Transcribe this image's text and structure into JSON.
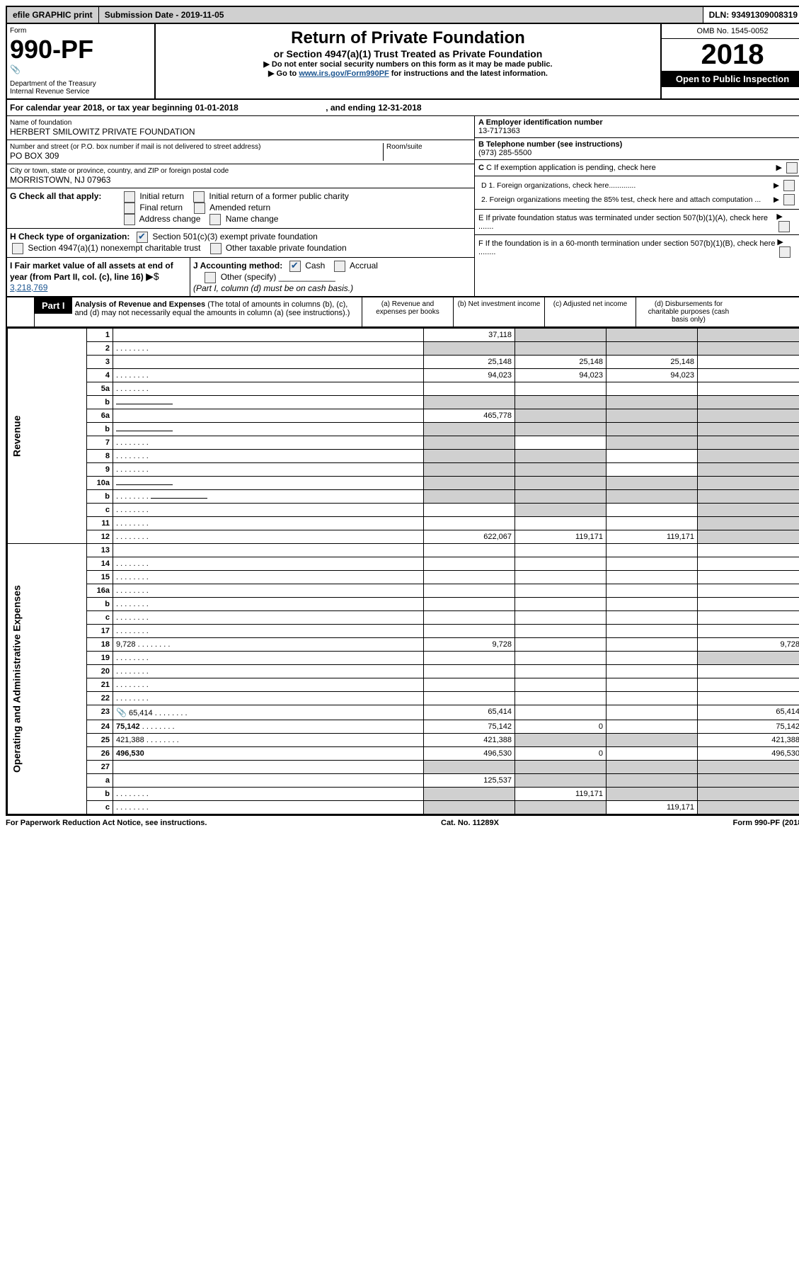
{
  "top": {
    "efile": "efile GRAPHIC print",
    "sub_date": "Submission Date - 2019-11-05",
    "dln": "DLN: 93491309008319"
  },
  "header": {
    "form_label": "Form",
    "form_no": "990-PF",
    "dept": "Department of the Treasury",
    "irs": "Internal Revenue Service",
    "title": "Return of Private Foundation",
    "subtitle": "or Section 4947(a)(1) Trust Treated as Private Foundation",
    "instr1": "▶ Do not enter social security numbers on this form as it may be made public.",
    "instr2_pre": "▶ Go to ",
    "instr2_link": "www.irs.gov/Form990PF",
    "instr2_post": " for instructions and the latest information.",
    "omb": "OMB No. 1545-0052",
    "year": "2018",
    "inspection": "Open to Public Inspection"
  },
  "cal": {
    "text_pre": "For calendar year 2018, or tax year beginning ",
    "begin": "01-01-2018",
    "mid": ", and ending ",
    "end": "12-31-2018"
  },
  "info": {
    "name_label": "Name of foundation",
    "name": "HERBERT SMILOWITZ PRIVATE FOUNDATION",
    "addr_label": "Number and street (or P.O. box number if mail is not delivered to street address)",
    "room_label": "Room/suite",
    "addr": "PO BOX 309",
    "city_label": "City or town, state or province, country, and ZIP or foreign postal code",
    "city": "MORRISTOWN, NJ  07963",
    "a_label": "A Employer identification number",
    "a_val": "13-7171363",
    "b_label": "B Telephone number (see instructions)",
    "b_val": "(973) 285-5500",
    "c_label": "C If exemption application is pending, check here",
    "d1": "D 1. Foreign organizations, check here.............",
    "d2": "2. Foreign organizations meeting the 85% test, check here and attach computation ...",
    "e": "E If private foundation status was terminated under section 507(b)(1)(A), check here .......",
    "f": "F If the foundation is in a 60-month termination under section 507(b)(1)(B), check here ........"
  },
  "g": {
    "label": "G Check all that apply:",
    "opts": [
      "Initial return",
      "Initial return of a former public charity",
      "Final return",
      "Amended return",
      "Address change",
      "Name change"
    ]
  },
  "h": {
    "label": "H Check type of organization:",
    "o1": "Section 501(c)(3) exempt private foundation",
    "o2": "Section 4947(a)(1) nonexempt charitable trust",
    "o3": "Other taxable private foundation"
  },
  "i": {
    "label": "I Fair market value of all assets at end of year (from Part II, col. (c), line 16)",
    "arrow": "▶$",
    "val": "3,218,769"
  },
  "j": {
    "label": "J Accounting method:",
    "o1": "Cash",
    "o2": "Accrual",
    "o3": "Other (specify)",
    "note": "(Part I, column (d) must be on cash basis.)"
  },
  "part1": {
    "label": "Part I",
    "title": "Analysis of Revenue and Expenses",
    "title_note": "(The total of amounts in columns (b), (c), and (d) may not necessarily equal the amounts in column (a) (see instructions).)",
    "col_a": "(a) Revenue and expenses per books",
    "col_b": "(b) Net investment income",
    "col_c": "(c) Adjusted net income",
    "col_d": "(d) Disbursements for charitable purposes (cash basis only)"
  },
  "sections": {
    "revenue": "Revenue",
    "expenses": "Operating and Administrative Expenses"
  },
  "rows": [
    {
      "n": "1",
      "d": "",
      "a": "37,118",
      "b": "",
      "c": "",
      "shade_bcd": true
    },
    {
      "n": "2",
      "d": "",
      "a": "",
      "b": "",
      "c": "",
      "shade_all": true,
      "dots": true,
      "bold_parts": true
    },
    {
      "n": "3",
      "d": "",
      "a": "25,148",
      "b": "25,148",
      "c": "25,148"
    },
    {
      "n": "4",
      "d": "",
      "a": "94,023",
      "b": "94,023",
      "c": "94,023",
      "dots": true
    },
    {
      "n": "5a",
      "d": "",
      "a": "",
      "b": "",
      "c": "",
      "dots": true
    },
    {
      "n": "b",
      "d": "",
      "a": "",
      "b": "",
      "c": "",
      "inline": true,
      "shade_all": true
    },
    {
      "n": "6a",
      "d": "",
      "a": "465,778",
      "b": "",
      "c": "",
      "shade_bcd": true
    },
    {
      "n": "b",
      "d": "",
      "a": "",
      "b": "",
      "c": "",
      "inline": true,
      "shade_all": true
    },
    {
      "n": "7",
      "d": "",
      "a": "",
      "b": "",
      "c": "",
      "dots": true,
      "shade_a": true,
      "shade_cd": true
    },
    {
      "n": "8",
      "d": "",
      "a": "",
      "b": "",
      "c": "",
      "dots": true,
      "shade_ab": true,
      "shade_d": true
    },
    {
      "n": "9",
      "d": "",
      "a": "",
      "b": "",
      "c": "",
      "dots": true,
      "shade_ab": true,
      "shade_d": true
    },
    {
      "n": "10a",
      "d": "",
      "a": "",
      "b": "",
      "c": "",
      "inline": true,
      "shade_all": true
    },
    {
      "n": "b",
      "d": "",
      "a": "",
      "b": "",
      "c": "",
      "dots": true,
      "inline": true,
      "shade_all": true
    },
    {
      "n": "c",
      "d": "",
      "a": "",
      "b": "",
      "c": "",
      "dots": true,
      "shade_b": true,
      "shade_d": true
    },
    {
      "n": "11",
      "d": "",
      "a": "",
      "b": "",
      "c": "",
      "dots": true,
      "shade_d": true
    },
    {
      "n": "12",
      "d": "",
      "a": "622,067",
      "b": "119,171",
      "c": "119,171",
      "dots": true,
      "bold": true,
      "shade_d": true
    },
    {
      "n": "13",
      "d": "",
      "a": "",
      "b": "",
      "c": "",
      "section": "exp"
    },
    {
      "n": "14",
      "d": "",
      "a": "",
      "b": "",
      "c": "",
      "dots": true
    },
    {
      "n": "15",
      "d": "",
      "a": "",
      "b": "",
      "c": "",
      "dots": true
    },
    {
      "n": "16a",
      "d": "",
      "a": "",
      "b": "",
      "c": "",
      "dots": true
    },
    {
      "n": "b",
      "d": "",
      "a": "",
      "b": "",
      "c": "",
      "dots": true
    },
    {
      "n": "c",
      "d": "",
      "a": "",
      "b": "",
      "c": "",
      "dots": true
    },
    {
      "n": "17",
      "d": "",
      "a": "",
      "b": "",
      "c": "",
      "dots": true
    },
    {
      "n": "18",
      "d": "9,728",
      "a": "9,728",
      "b": "",
      "c": "",
      "dots": true
    },
    {
      "n": "19",
      "d": "",
      "a": "",
      "b": "",
      "c": "",
      "dots": true,
      "shade_d": true
    },
    {
      "n": "20",
      "d": "",
      "a": "",
      "b": "",
      "c": "",
      "dots": true
    },
    {
      "n": "21",
      "d": "",
      "a": "",
      "b": "",
      "c": "",
      "dots": true
    },
    {
      "n": "22",
      "d": "",
      "a": "",
      "b": "",
      "c": "",
      "dots": true
    },
    {
      "n": "23",
      "d": "65,414",
      "a": "65,414",
      "b": "",
      "c": "",
      "dots": true,
      "attach": true
    },
    {
      "n": "24",
      "d": "75,142",
      "a": "75,142",
      "b": "0",
      "c": "",
      "dots": true,
      "bold": true
    },
    {
      "n": "25",
      "d": "421,388",
      "a": "421,388",
      "b": "",
      "c": "",
      "dots": true,
      "shade_bc": true
    },
    {
      "n": "26",
      "d": "496,530",
      "a": "496,530",
      "b": "0",
      "c": "",
      "bold": true
    },
    {
      "n": "27",
      "d": "",
      "a": "",
      "b": "",
      "c": "",
      "shade_all": true
    },
    {
      "n": "a",
      "d": "",
      "a": "125,537",
      "b": "",
      "c": "",
      "bold": true,
      "shade_bcd": true
    },
    {
      "n": "b",
      "d": "",
      "a": "",
      "b": "119,171",
      "c": "",
      "bold": true,
      "dots": true,
      "shade_a": true,
      "shade_cd": true
    },
    {
      "n": "c",
      "d": "",
      "a": "",
      "b": "",
      "c": "119,171",
      "bold": true,
      "dots": true,
      "shade_ab": true,
      "shade_d": true
    }
  ],
  "foot": {
    "left": "For Paperwork Reduction Act Notice, see instructions.",
    "mid": "Cat. No. 11289X",
    "right": "Form 990-PF (2018)"
  },
  "colors": {
    "shade": "#d0d0d0",
    "link": "#1a5490"
  }
}
